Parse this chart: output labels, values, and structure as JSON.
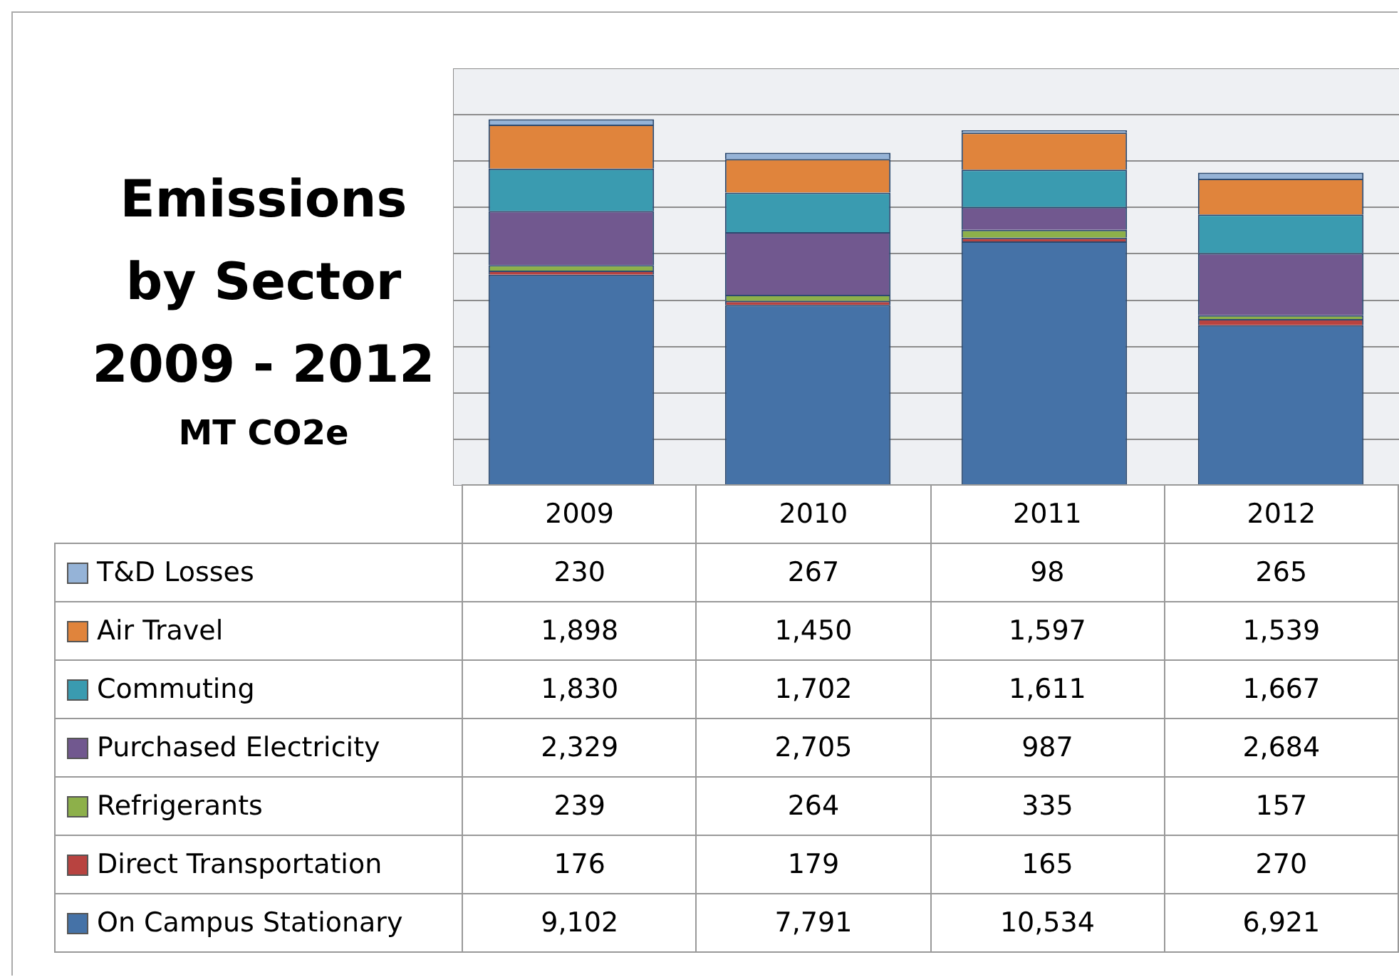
{
  "chart_data": {
    "type": "bar",
    "title": "Emissions by Sector 2009 - 2012",
    "subtitle": "MT CO2e",
    "categories": [
      "2009",
      "2010",
      "2011",
      "2012"
    ],
    "stacked": true,
    "grid": "y",
    "legend": "bottom left",
    "tick_labels": "x",
    "ylim": [
      0,
      18000
    ],
    "series": [
      {
        "name": "On Campus Stationary",
        "color": "#4572a7",
        "values": [
          9102,
          7791,
          10534,
          6921
        ],
        "value_labels": [
          "9,102",
          "7,791",
          "10,534",
          "6,921"
        ]
      },
      {
        "name": "Direct Transportation",
        "color": "#b84340",
        "values": [
          176,
          179,
          165,
          270
        ],
        "value_labels": [
          "176",
          "179",
          "165",
          "270"
        ]
      },
      {
        "name": "Refrigerants",
        "color": "#8db04a",
        "values": [
          239,
          264,
          335,
          157
        ],
        "value_labels": [
          "239",
          "264",
          "335",
          "157"
        ]
      },
      {
        "name": "Purchased Electricity",
        "color": "#71588f",
        "values": [
          2329,
          2705,
          987,
          2684
        ],
        "value_labels": [
          "2,329",
          "2,705",
          "987",
          "2,684"
        ]
      },
      {
        "name": "Commuting",
        "color": "#3a9bb0",
        "values": [
          1830,
          1702,
          1611,
          1667
        ],
        "value_labels": [
          "1,830",
          "1,702",
          "1,611",
          "1,667"
        ]
      },
      {
        "name": "Air Travel",
        "color": "#e0843c",
        "values": [
          1898,
          1450,
          1597,
          1539
        ],
        "value_labels": [
          "1,898",
          "1,450",
          "1,597",
          "1,539"
        ]
      },
      {
        "name": "T&D Losses",
        "color": "#95b3d7",
        "values": [
          230,
          267,
          98,
          265
        ],
        "value_labels": [
          "230",
          "267",
          "98",
          "265"
        ]
      }
    ]
  }
}
